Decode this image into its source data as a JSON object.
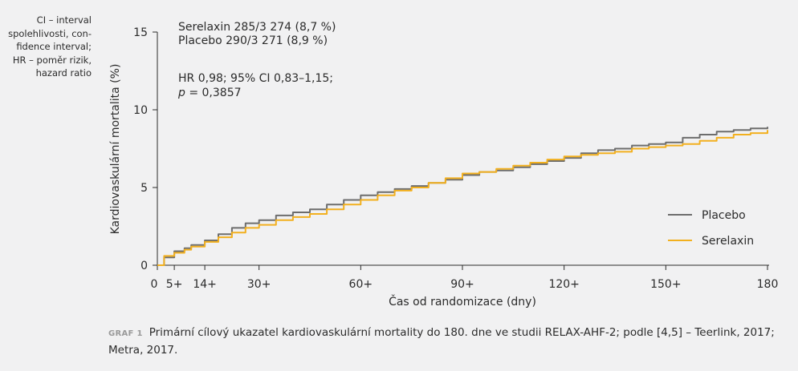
{
  "side_note": [
    "CI – interval",
    "spolehlivosti, con-",
    "fidence interval;",
    "HR – poměr rizik,",
    "hazard ratio"
  ],
  "caption": {
    "label": "GRAF 1",
    "text": "Primární cílový ukazatel kardiovaskulární mortality do 180. dne ve studii RELAX-AHF-2; podle [4,5] – Teerlink, 2017; Metra, 2017."
  },
  "colors": {
    "placebo": "#6d6d6d",
    "serelaxin": "#f2b01f",
    "axis": "#2b2b2b"
  },
  "chart_data": {
    "type": "line",
    "title": "",
    "xlabel": "Čas od randomizace (dny)",
    "ylabel": "Kardiovaskulární mortalita (%)",
    "xlim": [
      0,
      180
    ],
    "ylim": [
      0,
      15
    ],
    "x_ticks": [
      0,
      5,
      14,
      30,
      60,
      90,
      120,
      150,
      180
    ],
    "x_tick_labels": [
      "0",
      "5+",
      "14+",
      "30+",
      "60+",
      "90+",
      "120+",
      "150+",
      "180"
    ],
    "y_ticks": [
      0,
      5,
      10,
      15
    ],
    "y_tick_labels": [
      "0",
      "5",
      "10",
      "15"
    ],
    "annotations": {
      "line1": "Serelaxin 285/3 274 (8,7 %)",
      "line2": "Placebo 290/3 271 (8,9 %)",
      "line3": "HR 0,98; 95% CI 0,83–1,15;",
      "p_label": "p",
      "p_value": " = 0,3857"
    },
    "legend_position": "right",
    "series": [
      {
        "name": "Placebo",
        "color": "#6d6d6d",
        "x": [
          0,
          2,
          5,
          8,
          10,
          14,
          18,
          22,
          26,
          30,
          35,
          40,
          45,
          50,
          55,
          60,
          65,
          70,
          75,
          80,
          85,
          90,
          95,
          100,
          105,
          110,
          115,
          120,
          125,
          130,
          135,
          140,
          145,
          150,
          155,
          160,
          165,
          170,
          175,
          180
        ],
        "y": [
          0,
          0.5,
          0.9,
          1.1,
          1.3,
          1.6,
          2.0,
          2.4,
          2.7,
          2.9,
          3.2,
          3.4,
          3.6,
          3.9,
          4.2,
          4.5,
          4.7,
          4.9,
          5.1,
          5.3,
          5.5,
          5.8,
          6.0,
          6.1,
          6.3,
          6.5,
          6.7,
          6.9,
          7.2,
          7.4,
          7.5,
          7.7,
          7.8,
          7.9,
          8.2,
          8.4,
          8.6,
          8.7,
          8.8,
          8.9
        ]
      },
      {
        "name": "Serelaxin",
        "color": "#f2b01f",
        "x": [
          0,
          2,
          5,
          8,
          10,
          14,
          18,
          22,
          26,
          30,
          35,
          40,
          45,
          50,
          55,
          60,
          65,
          70,
          75,
          80,
          85,
          90,
          95,
          100,
          105,
          110,
          115,
          120,
          125,
          130,
          135,
          140,
          145,
          150,
          155,
          160,
          165,
          170,
          175,
          180
        ],
        "y": [
          0,
          0.6,
          0.8,
          1.0,
          1.2,
          1.5,
          1.8,
          2.1,
          2.4,
          2.6,
          2.9,
          3.1,
          3.3,
          3.6,
          3.9,
          4.2,
          4.5,
          4.8,
          5.0,
          5.3,
          5.6,
          5.9,
          6.0,
          6.2,
          6.4,
          6.6,
          6.8,
          7.0,
          7.1,
          7.2,
          7.3,
          7.5,
          7.6,
          7.7,
          7.8,
          8.0,
          8.2,
          8.4,
          8.5,
          8.7
        ]
      }
    ]
  }
}
